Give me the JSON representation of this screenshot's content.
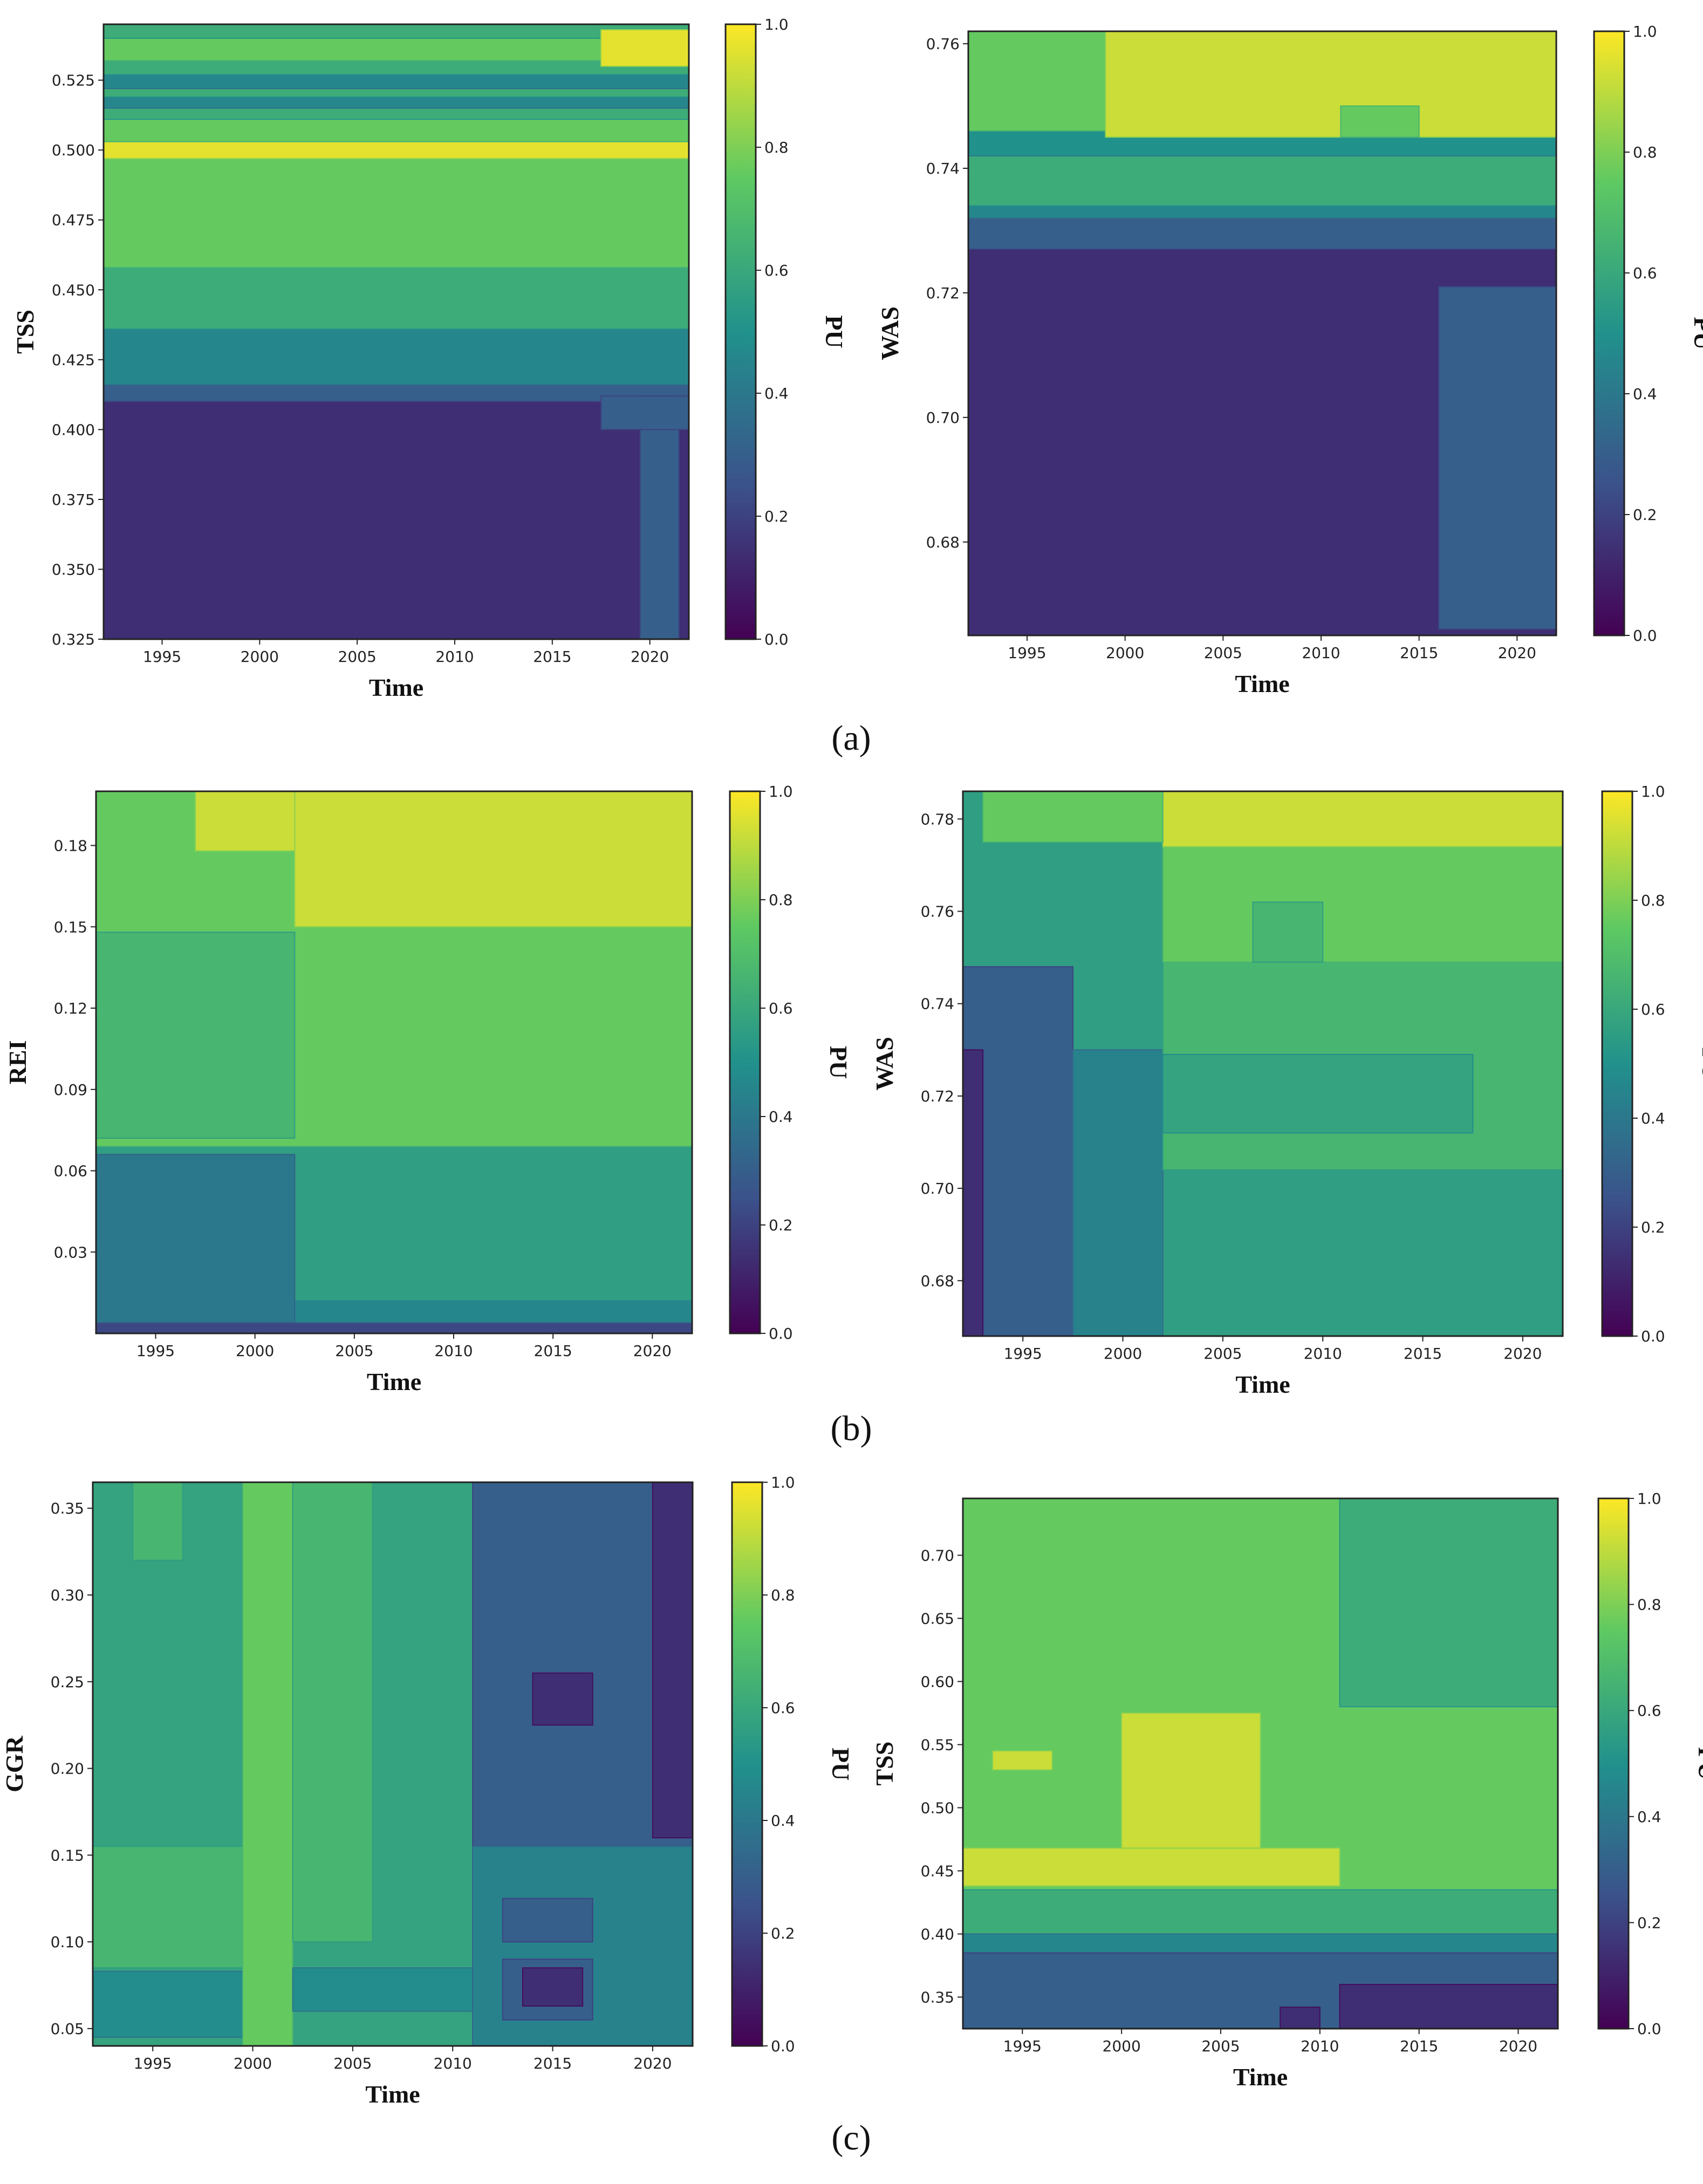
{
  "panel_labels": [
    "(a)",
    "(b)",
    "(c)"
  ],
  "colorbar": {
    "label": "PU",
    "ticks": [
      "0.0",
      "0.2",
      "0.4",
      "0.6",
      "0.8",
      "1.0"
    ],
    "colormap": "viridis",
    "stops": [
      "#440154",
      "#3b528b",
      "#21918c",
      "#5ec962",
      "#fde725"
    ]
  },
  "chart_data": [
    {
      "id": "a-left",
      "type": "heatmap",
      "panel": "(a)",
      "xlabel": "Time",
      "ylabel": "TSS",
      "xlim": [
        1992,
        2022
      ],
      "ylim": [
        0.325,
        0.545
      ],
      "xticks": [
        1995,
        2000,
        2005,
        2010,
        2015,
        2020
      ],
      "yticks": [
        0.325,
        0.35,
        0.375,
        0.4,
        0.425,
        0.45,
        0.475,
        0.5,
        0.525
      ],
      "ytick_decimals": 3,
      "regions": [
        {
          "y": [
            0.325,
            0.41
          ],
          "pu": 0.14
        },
        {
          "y": [
            0.41,
            0.416
          ],
          "pu": 0.3
        },
        {
          "y": [
            0.416,
            0.436
          ],
          "pu": 0.46
        },
        {
          "y": [
            0.436,
            0.458
          ],
          "pu": 0.62
        },
        {
          "y": [
            0.458,
            0.497
          ],
          "pu": 0.76
        },
        {
          "y": [
            0.497,
            0.503
          ],
          "pu": 0.96
        },
        {
          "y": [
            0.503,
            0.511
          ],
          "pu": 0.76
        },
        {
          "y": [
            0.511,
            0.515
          ],
          "pu": 0.62
        },
        {
          "y": [
            0.515,
            0.519
          ],
          "pu": 0.46
        },
        {
          "y": [
            0.519,
            0.522
          ],
          "pu": 0.62
        },
        {
          "y": [
            0.522,
            0.527
          ],
          "pu": 0.46
        },
        {
          "y": [
            0.527,
            0.532
          ],
          "pu": 0.62
        },
        {
          "y": [
            0.532,
            0.54
          ],
          "pu": 0.76
        },
        {
          "y": [
            0.54,
            0.545
          ],
          "pu": 0.62
        },
        {
          "x": [
            2017.5,
            2022
          ],
          "y": [
            0.53,
            0.543
          ],
          "pu": 0.96
        },
        {
          "x": [
            2019.5,
            2021.5
          ],
          "y": [
            0.325,
            0.412
          ],
          "pu": 0.3
        },
        {
          "x": [
            2017.5,
            2022
          ],
          "y": [
            0.4,
            0.412
          ],
          "pu": 0.3
        }
      ]
    },
    {
      "id": "a-right",
      "type": "heatmap",
      "panel": "(a)",
      "xlabel": "Time",
      "ylabel": "WAS",
      "xlim": [
        1992,
        2022
      ],
      "ylim": [
        0.665,
        0.762
      ],
      "xticks": [
        1995,
        2000,
        2005,
        2010,
        2015,
        2020
      ],
      "yticks": [
        0.68,
        0.7,
        0.72,
        0.74,
        0.76
      ],
      "ytick_decimals": 2,
      "regions": [
        {
          "y": [
            0.665,
            0.727
          ],
          "pu": 0.14
        },
        {
          "y": [
            0.727,
            0.732
          ],
          "pu": 0.3
        },
        {
          "y": [
            0.732,
            0.734
          ],
          "pu": 0.46
        },
        {
          "y": [
            0.734,
            0.742
          ],
          "pu": 0.62
        },
        {
          "y": [
            0.742,
            0.746
          ],
          "pu": 0.5
        },
        {
          "y": [
            0.746,
            0.762
          ],
          "pu": 0.76
        },
        {
          "x": [
            1999,
            2022
          ],
          "y": [
            0.745,
            0.762
          ],
          "pu": 0.92
        },
        {
          "x": [
            2011,
            2015
          ],
          "y": [
            0.745,
            0.75
          ],
          "pu": 0.76
        },
        {
          "x": [
            2016,
            2022
          ],
          "y": [
            0.666,
            0.721
          ],
          "pu": 0.3
        }
      ]
    },
    {
      "id": "b-left",
      "type": "heatmap",
      "panel": "(b)",
      "xlabel": "Time",
      "ylabel": "REI",
      "xlim": [
        1992,
        2022
      ],
      "ylim": [
        0.0,
        0.2
      ],
      "xticks": [
        1995,
        2000,
        2005,
        2010,
        2015,
        2020
      ],
      "yticks": [
        0.03,
        0.06,
        0.09,
        0.12,
        0.15,
        0.18
      ],
      "ytick_decimals": 2,
      "regions": [
        {
          "y": [
            0.0,
            0.004
          ],
          "pu": 0.22
        },
        {
          "y": [
            0.004,
            0.012
          ],
          "pu": 0.46
        },
        {
          "y": [
            0.012,
            0.069
          ],
          "pu": 0.56
        },
        {
          "y": [
            0.069,
            0.2
          ],
          "pu": 0.76
        },
        {
          "x": [
            1992,
            2002
          ],
          "y": [
            0.004,
            0.066
          ],
          "pu": 0.4
        },
        {
          "x": [
            1992,
            2002
          ],
          "y": [
            0.072,
            0.148
          ],
          "pu": 0.66
        },
        {
          "x": [
            2002,
            2022
          ],
          "y": [
            0.15,
            0.2
          ],
          "pu": 0.92
        },
        {
          "x": [
            1997,
            2002
          ],
          "y": [
            0.178,
            0.2
          ],
          "pu": 0.92
        }
      ]
    },
    {
      "id": "b-right",
      "type": "heatmap",
      "panel": "(b)",
      "xlabel": "Time",
      "ylabel": "WAS",
      "xlim": [
        1992,
        2022
      ],
      "ylim": [
        0.668,
        0.786
      ],
      "xticks": [
        1995,
        2000,
        2005,
        2010,
        2015,
        2020
      ],
      "yticks": [
        0.68,
        0.7,
        0.72,
        0.74,
        0.76,
        0.78
      ],
      "ytick_decimals": 2,
      "regions": [
        {
          "x": [
            1992,
            2022
          ],
          "y": [
            0.668,
            0.786
          ],
          "pu": 0.56
        },
        {
          "x": [
            1992,
            1997.5
          ],
          "y": [
            0.668,
            0.748
          ],
          "pu": 0.3
        },
        {
          "x": [
            1992,
            1993
          ],
          "y": [
            0.668,
            0.73
          ],
          "pu": 0.14
        },
        {
          "x": [
            1997.5,
            2002
          ],
          "y": [
            0.668,
            0.73
          ],
          "pu": 0.44
        },
        {
          "x": [
            2002,
            2022
          ],
          "y": [
            0.704,
            0.749
          ],
          "pu": 0.66
        },
        {
          "x": [
            2002,
            2017.5
          ],
          "y": [
            0.712,
            0.729
          ],
          "pu": 0.58
        },
        {
          "x": [
            2002,
            2022
          ],
          "y": [
            0.749,
            0.774
          ],
          "pu": 0.76
        },
        {
          "x": [
            2006.5,
            2010
          ],
          "y": [
            0.749,
            0.762
          ],
          "pu": 0.66
        },
        {
          "x": [
            2002,
            2022
          ],
          "y": [
            0.774,
            0.786
          ],
          "pu": 0.92
        },
        {
          "x": [
            1993,
            2002
          ],
          "y": [
            0.775,
            0.786
          ],
          "pu": 0.76
        }
      ]
    },
    {
      "id": "c-left",
      "type": "heatmap",
      "panel": "(c)",
      "xlabel": "Time",
      "ylabel": "GGR",
      "xlim": [
        1992,
        2022
      ],
      "ylim": [
        0.04,
        0.365
      ],
      "xticks": [
        1995,
        2000,
        2005,
        2010,
        2015,
        2020
      ],
      "yticks": [
        0.05,
        0.1,
        0.15,
        0.2,
        0.25,
        0.3,
        0.35
      ],
      "ytick_decimals": 2,
      "regions": [
        {
          "x": [
            1992,
            2011
          ],
          "y": [
            0.04,
            0.365
          ],
          "pu": 0.58
        },
        {
          "x": [
            1992,
            1999.5
          ],
          "y": [
            0.045,
            0.083
          ],
          "pu": 0.48
        },
        {
          "x": [
            1992,
            1999.5
          ],
          "y": [
            0.085,
            0.155
          ],
          "pu": 0.66
        },
        {
          "x": [
            1994,
            1996.5
          ],
          "y": [
            0.32,
            0.365
          ],
          "pu": 0.66
        },
        {
          "x": [
            1999.5,
            2002
          ],
          "y": [
            0.04,
            0.365
          ],
          "pu": 0.76
        },
        {
          "x": [
            2002,
            2006
          ],
          "y": [
            0.1,
            0.365
          ],
          "pu": 0.66
        },
        {
          "x": [
            2002,
            2011
          ],
          "y": [
            0.06,
            0.085
          ],
          "pu": 0.48
        },
        {
          "x": [
            2011,
            2022
          ],
          "y": [
            0.04,
            0.365
          ],
          "pu": 0.3
        },
        {
          "x": [
            2011,
            2022
          ],
          "y": [
            0.04,
            0.155
          ],
          "pu": 0.44
        },
        {
          "x": [
            2012.5,
            2017
          ],
          "y": [
            0.1,
            0.125
          ],
          "pu": 0.3
        },
        {
          "x": [
            2012.5,
            2017
          ],
          "y": [
            0.055,
            0.09
          ],
          "pu": 0.3
        },
        {
          "x": [
            2013.5,
            2016.5
          ],
          "y": [
            0.063,
            0.085
          ],
          "pu": 0.14
        },
        {
          "x": [
            2014,
            2017
          ],
          "y": [
            0.225,
            0.255
          ],
          "pu": 0.14
        },
        {
          "x": [
            2020,
            2022
          ],
          "y": [
            0.16,
            0.365
          ],
          "pu": 0.14
        }
      ]
    },
    {
      "id": "c-right",
      "type": "heatmap",
      "panel": "(c)",
      "xlabel": "Time",
      "ylabel": "TSS",
      "xlim": [
        1992,
        2022
      ],
      "ylim": [
        0.325,
        0.745
      ],
      "xticks": [
        1995,
        2000,
        2005,
        2010,
        2015,
        2020
      ],
      "yticks": [
        0.35,
        0.4,
        0.45,
        0.5,
        0.55,
        0.6,
        0.65,
        0.7
      ],
      "ytick_decimals": 2,
      "regions": [
        {
          "x": [
            1992,
            2022
          ],
          "y": [
            0.325,
            0.745
          ],
          "pu": 0.76
        },
        {
          "x": [
            2011,
            2022
          ],
          "y": [
            0.58,
            0.745
          ],
          "pu": 0.62
        },
        {
          "x": [
            1992,
            2022
          ],
          "y": [
            0.4,
            0.435
          ],
          "pu": 0.62
        },
        {
          "x": [
            1992,
            2022
          ],
          "y": [
            0.385,
            0.4
          ],
          "pu": 0.46
        },
        {
          "x": [
            1992,
            2022
          ],
          "y": [
            0.325,
            0.385
          ],
          "pu": 0.3
        },
        {
          "x": [
            2008,
            2010
          ],
          "y": [
            0.325,
            0.342
          ],
          "pu": 0.14
        },
        {
          "x": [
            2011,
            2022
          ],
          "y": [
            0.325,
            0.36
          ],
          "pu": 0.14
        },
        {
          "x": [
            1992,
            2011
          ],
          "y": [
            0.438,
            0.468
          ],
          "pu": 0.92
        },
        {
          "x": [
            2000,
            2007
          ],
          "y": [
            0.468,
            0.575
          ],
          "pu": 0.92
        },
        {
          "x": [
            1993.5,
            1996.5
          ],
          "y": [
            0.53,
            0.545
          ],
          "pu": 0.92
        }
      ]
    }
  ]
}
